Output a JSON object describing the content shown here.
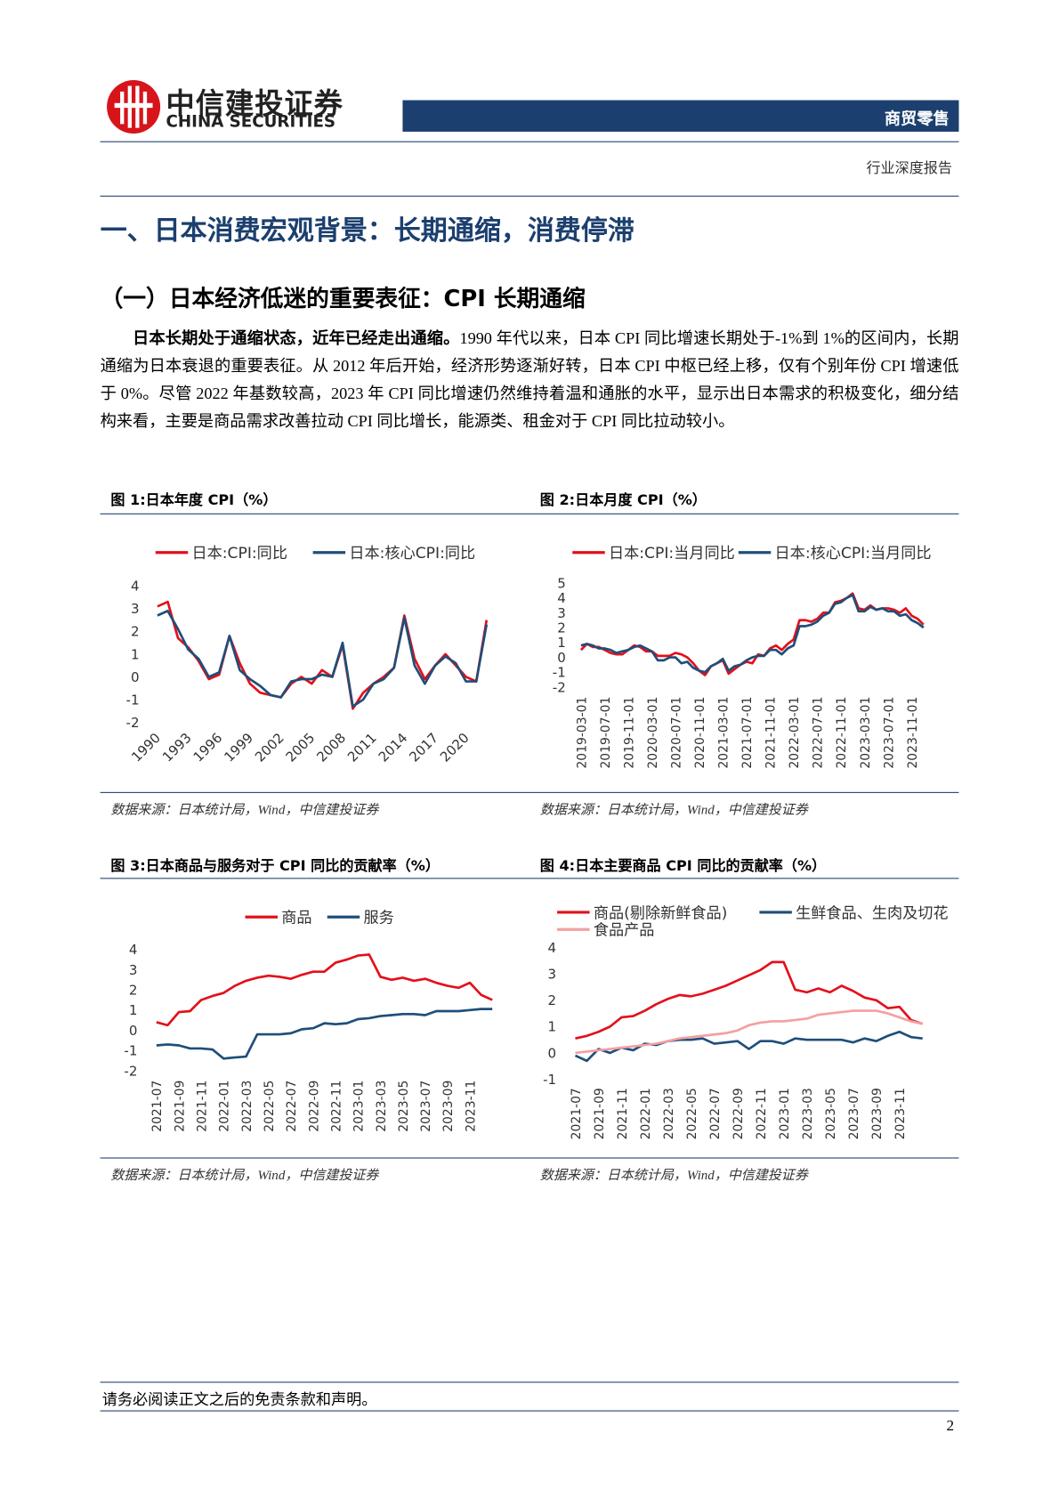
{
  "header": {
    "logo_cn": "中信建投证券",
    "logo_en": "CHINA SECURITIES",
    "sector": "商贸零售",
    "report_type": "行业深度报告"
  },
  "section_title": "一、日本消费宏观背景：长期通缩，消费停滞",
  "subsection_title": "（一）日本经济低迷的重要表征：CPI 长期通缩",
  "body": {
    "bold": "日本长期处于通缩状态，近年已经走出通缩。",
    "text": "1990 年代以来，日本 CPI 同比增速长期处于-1%到 1%的区间内，长期通缩为日本衰退的重要表征。从 2012 年后开始，经济形势逐渐好转，日本 CPI 中枢已经上移，仅有个别年份 CPI 增速低于 0%。尽管 2022 年基数较高，2023 年 CPI 同比增速仍然维持着温和通胀的水平，显示出日本需求的积极变化，细分结构来看，主要是商品需求改善拉动 CPI 同比增长，能源类、租金对于 CPI 同比拉动较小。"
  },
  "chart_data": [
    {
      "type": "line",
      "title": "图 1:日本年度 CPI（%）",
      "source": "数据来源：日本统计局，Wind，中信建投证券",
      "categories": [
        "1990",
        null,
        null,
        "1993",
        null,
        null,
        "1996",
        null,
        null,
        "1999",
        null,
        null,
        "2002",
        null,
        null,
        "2005",
        null,
        null,
        "2008",
        null,
        null,
        "2011",
        null,
        null,
        "2014",
        null,
        null,
        "2017",
        null,
        null,
        "2020",
        null,
        null
      ],
      "series": [
        {
          "name": "日本:CPI:同比",
          "color": "#e3101b",
          "values": [
            3.1,
            3.3,
            1.7,
            1.3,
            0.7,
            -0.1,
            0.1,
            1.8,
            0.6,
            -0.3,
            -0.7,
            -0.8,
            -0.9,
            -0.3,
            0.0,
            -0.3,
            0.3,
            0.0,
            1.4,
            -1.4,
            -0.7,
            -0.3,
            0.0,
            0.4,
            2.7,
            0.8,
            -0.1,
            0.5,
            1.0,
            0.5,
            0.0,
            -0.2,
            2.5
          ]
        },
        {
          "name": "日本:核心CPI:同比",
          "color": "#1f4e79",
          "values": [
            2.7,
            2.9,
            2.1,
            1.2,
            0.8,
            0.0,
            0.2,
            1.8,
            0.3,
            -0.1,
            -0.4,
            -0.8,
            -0.9,
            -0.2,
            -0.1,
            -0.1,
            0.1,
            0.0,
            1.5,
            -1.3,
            -1.0,
            -0.3,
            -0.1,
            0.4,
            2.6,
            0.5,
            -0.3,
            0.5,
            0.9,
            0.6,
            -0.2,
            -0.2,
            2.3
          ]
        }
      ],
      "ylim": [
        -2,
        4
      ],
      "yticks": [
        -2,
        -1,
        0,
        1,
        2,
        3,
        4
      ],
      "grid": false
    },
    {
      "type": "line",
      "title": "图 2:日本月度 CPI（%）",
      "source": "数据来源：日本统计局，Wind，中信建投证券",
      "categories": [
        "2019-03-01",
        null,
        null,
        null,
        "2019-07-01",
        null,
        null,
        null,
        "2019-11-01",
        null,
        null,
        null,
        "2020-03-01",
        null,
        null,
        null,
        "2020-07-01",
        null,
        null,
        null,
        "2020-11-01",
        null,
        null,
        null,
        "2021-03-01",
        null,
        null,
        null,
        "2021-07-01",
        null,
        null,
        null,
        "2021-11-01",
        null,
        null,
        null,
        "2022-03-01",
        null,
        null,
        null,
        "2022-07-01",
        null,
        null,
        null,
        "2022-11-01",
        null,
        null,
        null,
        "2023-03-01",
        null,
        null,
        null,
        "2023-07-01",
        null,
        null,
        null,
        "2023-11-01",
        null,
        null
      ],
      "series": [
        {
          "name": "日本:CPI:当月同比",
          "color": "#e3101b",
          "values": [
            0.5,
            0.9,
            0.7,
            0.7,
            0.5,
            0.3,
            0.2,
            0.2,
            0.5,
            0.8,
            0.7,
            0.4,
            0.4,
            0.1,
            0.1,
            0.1,
            0.3,
            0.2,
            0.0,
            -0.4,
            -0.9,
            -1.2,
            -0.6,
            -0.4,
            -0.2,
            -1.1,
            -0.8,
            -0.5,
            -0.3,
            -0.4,
            0.2,
            0.1,
            0.6,
            0.8,
            0.5,
            0.9,
            1.2,
            2.5,
            2.5,
            2.4,
            2.6,
            3.0,
            3.0,
            3.7,
            3.8,
            4.0,
            4.3,
            3.3,
            3.2,
            3.5,
            3.2,
            3.3,
            3.3,
            3.2,
            3.0,
            3.3,
            2.8,
            2.6,
            2.2
          ]
        },
        {
          "name": "日本:核心CPI:当月同比",
          "color": "#1f4e79",
          "values": [
            0.8,
            0.9,
            0.8,
            0.6,
            0.6,
            0.5,
            0.3,
            0.4,
            0.5,
            0.7,
            0.8,
            0.6,
            0.4,
            -0.2,
            -0.2,
            0.0,
            0.0,
            -0.4,
            -0.3,
            -0.7,
            -0.9,
            -1.0,
            -0.6,
            -0.4,
            -0.1,
            -0.9,
            -0.6,
            -0.5,
            -0.2,
            0.0,
            0.1,
            0.1,
            0.5,
            0.5,
            0.2,
            0.6,
            0.8,
            2.1,
            2.1,
            2.2,
            2.4,
            2.8,
            3.0,
            3.6,
            3.7,
            4.0,
            4.2,
            3.1,
            3.1,
            3.4,
            3.2,
            3.3,
            3.1,
            3.1,
            2.8,
            2.9,
            2.5,
            2.3,
            2.0
          ]
        }
      ],
      "ylim": [
        -2,
        5
      ],
      "yticks": [
        -2,
        -1,
        0,
        1,
        2,
        3,
        4,
        5
      ],
      "grid": false
    },
    {
      "type": "line",
      "title": "图 3:日本商品与服务对于 CPI 同比的贡献率（%）",
      "source": "数据来源：日本统计局，Wind，中信建投证券",
      "categories": [
        "2021-07",
        null,
        "2021-09",
        null,
        "2021-11",
        null,
        "2022-01",
        null,
        "2022-03",
        null,
        "2022-05",
        null,
        "2022-07",
        null,
        "2022-09",
        null,
        "2022-11",
        null,
        "2023-01",
        null,
        "2023-03",
        null,
        "2023-05",
        null,
        "2023-07",
        null,
        "2023-09",
        null,
        "2023-11",
        null,
        null
      ],
      "series": [
        {
          "name": "商品",
          "color": "#e3101b",
          "values": [
            0.4,
            0.25,
            0.9,
            0.95,
            1.5,
            1.7,
            1.85,
            2.2,
            2.45,
            2.6,
            2.7,
            2.65,
            2.55,
            2.75,
            2.9,
            2.9,
            3.35,
            3.5,
            3.7,
            3.75,
            2.65,
            2.5,
            2.6,
            2.45,
            2.55,
            2.35,
            2.2,
            2.1,
            2.35,
            1.75,
            1.5
          ]
        },
        {
          "name": "服务",
          "color": "#1f4e79",
          "values": [
            -0.75,
            -0.7,
            -0.75,
            -0.9,
            -0.9,
            -0.95,
            -1.4,
            -1.35,
            -1.3,
            -0.2,
            -0.2,
            -0.2,
            -0.15,
            0.05,
            0.1,
            0.35,
            0.3,
            0.35,
            0.55,
            0.6,
            0.7,
            0.75,
            0.8,
            0.8,
            0.75,
            0.95,
            0.95,
            0.95,
            1.0,
            1.05,
            1.05
          ]
        }
      ],
      "ylim": [
        -2,
        4
      ],
      "yticks": [
        -2,
        -1,
        0,
        1,
        2,
        3,
        4
      ],
      "grid": false
    },
    {
      "type": "line",
      "title": "图 4:日本主要商品 CPI 同比的贡献率（%）",
      "source": "数据来源：日本统计局，Wind，中信建投证券",
      "categories": [
        "2021-07",
        null,
        "2021-09",
        null,
        "2021-11",
        null,
        "2022-01",
        null,
        "2022-03",
        null,
        "2022-05",
        null,
        "2022-07",
        null,
        "2022-09",
        null,
        "2022-11",
        null,
        "2023-01",
        null,
        "2023-03",
        null,
        "2023-05",
        null,
        "2023-07",
        null,
        "2023-09",
        null,
        "2023-11",
        null,
        null
      ],
      "series": [
        {
          "name": "商品(剔除新鲜食品)",
          "color": "#e3101b",
          "values": [
            0.55,
            0.65,
            0.8,
            1.0,
            1.35,
            1.4,
            1.6,
            1.85,
            2.05,
            2.2,
            2.15,
            2.25,
            2.4,
            2.55,
            2.75,
            2.95,
            3.15,
            3.45,
            3.45,
            2.4,
            2.3,
            2.45,
            2.3,
            2.55,
            2.35,
            2.1,
            2.0,
            1.7,
            1.75,
            1.25,
            1.1
          ]
        },
        {
          "name": "生鲜食品、生肉及切花",
          "color": "#1f4e79",
          "values": [
            -0.1,
            -0.3,
            0.15,
            0.0,
            0.2,
            0.1,
            0.35,
            0.3,
            0.45,
            0.5,
            0.5,
            0.55,
            0.35,
            0.4,
            0.45,
            0.15,
            0.45,
            0.45,
            0.35,
            0.55,
            0.5,
            0.5,
            0.5,
            0.5,
            0.4,
            0.55,
            0.45,
            0.65,
            0.8,
            0.6,
            0.55
          ]
        },
        {
          "name": "食品产品",
          "color": "#f4a0a0",
          "values": [
            0.0,
            0.05,
            0.1,
            0.15,
            0.2,
            0.25,
            0.3,
            0.35,
            0.45,
            0.55,
            0.6,
            0.65,
            0.7,
            0.75,
            0.85,
            1.05,
            1.15,
            1.2,
            1.2,
            1.25,
            1.3,
            1.45,
            1.5,
            1.55,
            1.6,
            1.6,
            1.6,
            1.5,
            1.35,
            1.2,
            1.1
          ]
        }
      ],
      "ylim": [
        -1,
        4
      ],
      "yticks": [
        -1,
        0,
        1,
        2,
        3,
        4
      ],
      "grid": false
    }
  ],
  "footer": {
    "disclaimer": "请务必阅读正文之后的免责条款和声明。",
    "page": "2"
  }
}
